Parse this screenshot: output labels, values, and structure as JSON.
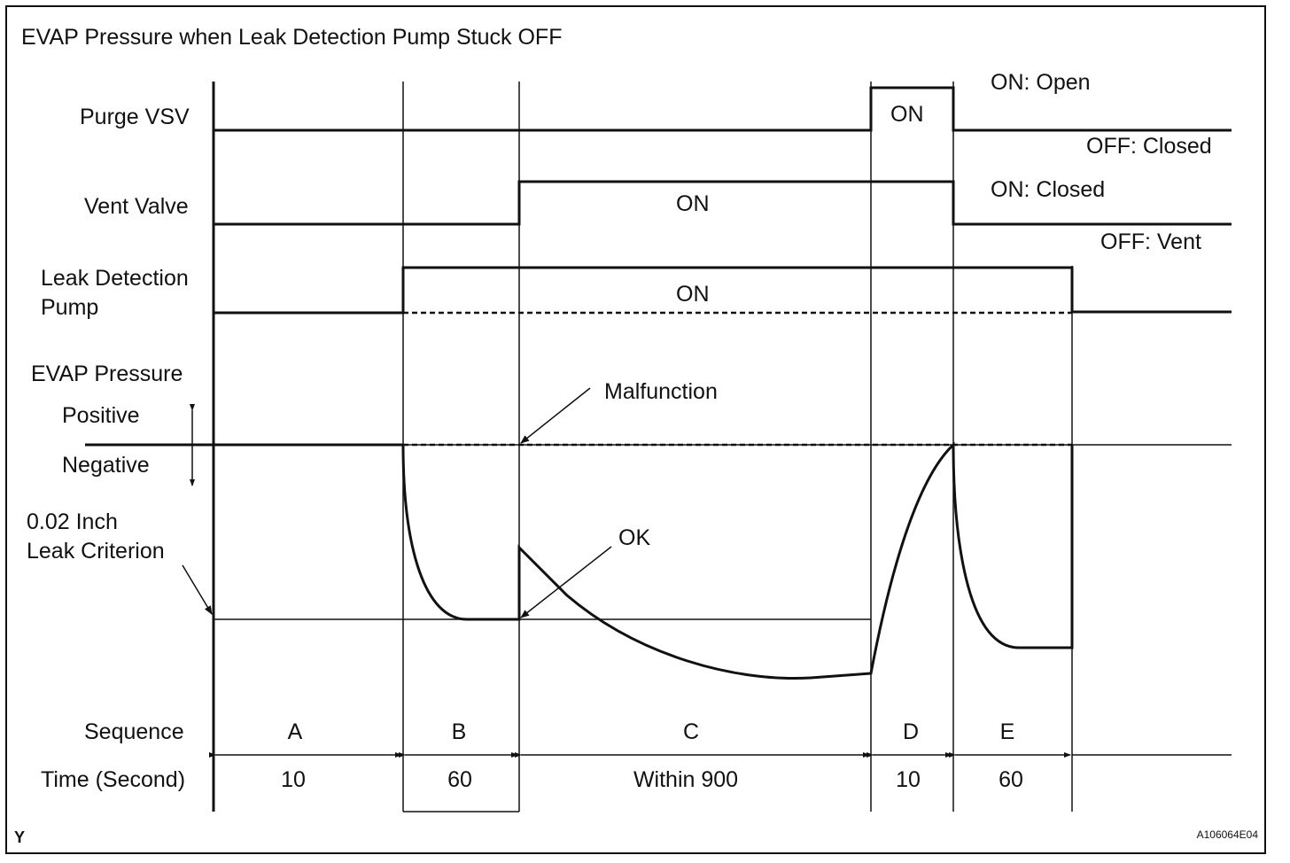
{
  "title": "EVAP Pressure when Leak Detection Pump Stuck OFF",
  "rows": {
    "purge_vsv": "Purge VSV",
    "vent_valve": "Vent Valve",
    "ldp_line1": "Leak Detection",
    "ldp_line2": "Pump",
    "evap_pressure": "EVAP Pressure",
    "positive": "Positive",
    "negative": "Negative",
    "criterion_line1": "0.02 Inch",
    "criterion_line2": "Leak Criterion",
    "sequence": "Sequence",
    "time": "Time (Second)"
  },
  "states": {
    "purge_on": "ON",
    "purge_on_note": "ON: Open",
    "purge_off_note": "OFF: Closed",
    "vent_on": "ON",
    "vent_on_note": "ON: Closed",
    "vent_off_note": "OFF: Vent",
    "pump_on": "ON"
  },
  "annotations": {
    "malfunction": "Malfunction",
    "ok": "OK"
  },
  "phases": [
    {
      "sequence": "A",
      "time": "10"
    },
    {
      "sequence": "B",
      "time": "60"
    },
    {
      "sequence": "C",
      "time": "Within 900"
    },
    {
      "sequence": "D",
      "time": "10"
    },
    {
      "sequence": "E",
      "time": "60"
    }
  ],
  "corner_mark": "Y",
  "figure_id": "A106064E04"
}
